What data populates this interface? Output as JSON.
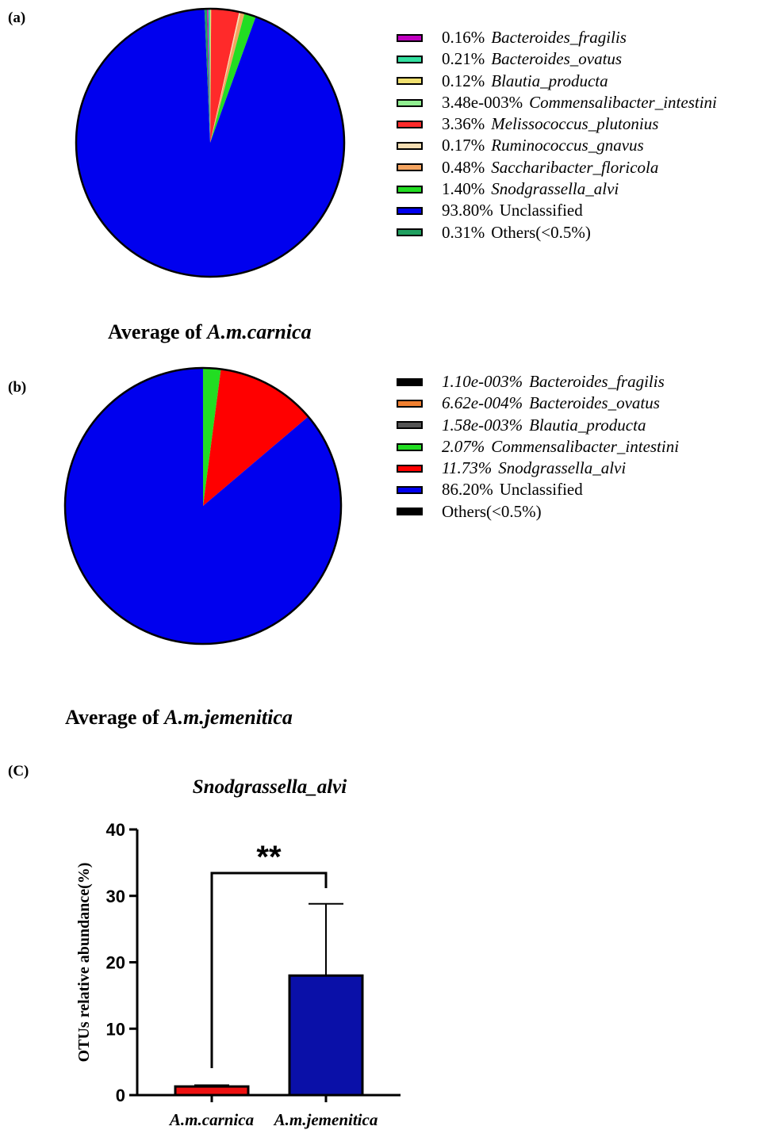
{
  "panels": {
    "a": "(a)",
    "b": "(b)",
    "c": "(C)"
  },
  "pie_titles": {
    "a": {
      "prefix": "Average of ",
      "name": "A.m.carnica"
    },
    "b": {
      "prefix": "Average of ",
      "name": "A.m.jemenitica"
    }
  },
  "chart_data": [
    {
      "type": "pie",
      "title": "Average of A.m.carnica",
      "legend_position": "right",
      "slices": [
        {
          "label": "Bacteroides_fragilis",
          "pct_label": "0.16%",
          "value": 0.16,
          "color": "#c000c0",
          "italic": true
        },
        {
          "label": "Bacteroides_ovatus",
          "pct_label": "0.21%",
          "value": 0.21,
          "color": "#33e0a0",
          "italic": true
        },
        {
          "label": "Blautia_producta",
          "pct_label": "0.12%",
          "value": 0.12,
          "color": "#f0e070",
          "italic": true
        },
        {
          "label": "Commensalibacter_intestini",
          "pct_label": "3.48e-003%",
          "value": 0.00348,
          "color": "#90ee90",
          "italic": true
        },
        {
          "label": "Melissococcus_plutonius",
          "pct_label": "3.36%",
          "value": 3.36,
          "color": "#ff2a2a",
          "italic": true
        },
        {
          "label": "Ruminococcus_gnavus",
          "pct_label": "0.17%",
          "value": 0.17,
          "color": "#f5deb3",
          "italic": true
        },
        {
          "label": "Saccharibacter_floricola",
          "pct_label": "0.48%",
          "value": 0.48,
          "color": "#f4a460",
          "italic": true
        },
        {
          "label": "Snodgrassella_alvi",
          "pct_label": "1.40%",
          "value": 1.4,
          "color": "#22dd22",
          "italic": true
        },
        {
          "label": "Unclassified",
          "pct_label": "93.80%",
          "value": 93.8,
          "color": "#0000ee",
          "italic": false
        },
        {
          "label": "Others(<0.5%)",
          "pct_label": "0.31%",
          "value": 0.31,
          "color": "#20a060",
          "italic": false
        }
      ]
    },
    {
      "type": "pie",
      "title": "Average of A.m.jemenitica",
      "legend_position": "right",
      "slices": [
        {
          "label": "Bacteroides_fragilis",
          "pct_label": "1.10e-003%",
          "value": 0.0011,
          "color": "#000000",
          "italic": true
        },
        {
          "label": "Bacteroides_ovatus",
          "pct_label": "6.62e-004%",
          "value": 0.000662,
          "color": "#f08030",
          "italic": true
        },
        {
          "label": "Blautia_producta",
          "pct_label": "1.58e-003%",
          "value": 0.00158,
          "color": "#555555",
          "italic": true
        },
        {
          "label": "Commensalibacter_intestini",
          "pct_label": "2.07%",
          "value": 2.07,
          "color": "#22dd22",
          "italic": true
        },
        {
          "label": "Snodgrassella_alvi",
          "pct_label": "11.73%",
          "value": 11.73,
          "color": "#ff0000",
          "italic": true
        },
        {
          "label": "Unclassified",
          "pct_label": "86.20%",
          "value": 86.2,
          "color": "#0000ee",
          "italic": false
        },
        {
          "label": "Others(<0.5%)",
          "pct_label": "",
          "value": 0,
          "color": "#000000",
          "italic": false
        }
      ]
    },
    {
      "type": "bar",
      "title": "Snodgrassella_alvi",
      "ylabel": "OTUs relative abundance(%)",
      "xlabel": "",
      "categories": [
        "A.m.carnica",
        "A.m.jemenitica"
      ],
      "values": [
        1.3,
        18.0
      ],
      "error_upper": [
        1.5,
        28.8
      ],
      "colors": [
        "#ee1111",
        "#0a10a8"
      ],
      "ylim": [
        0,
        40
      ],
      "yticks": [
        0,
        10,
        20,
        30,
        40
      ],
      "significance": "**",
      "grid": false
    }
  ]
}
